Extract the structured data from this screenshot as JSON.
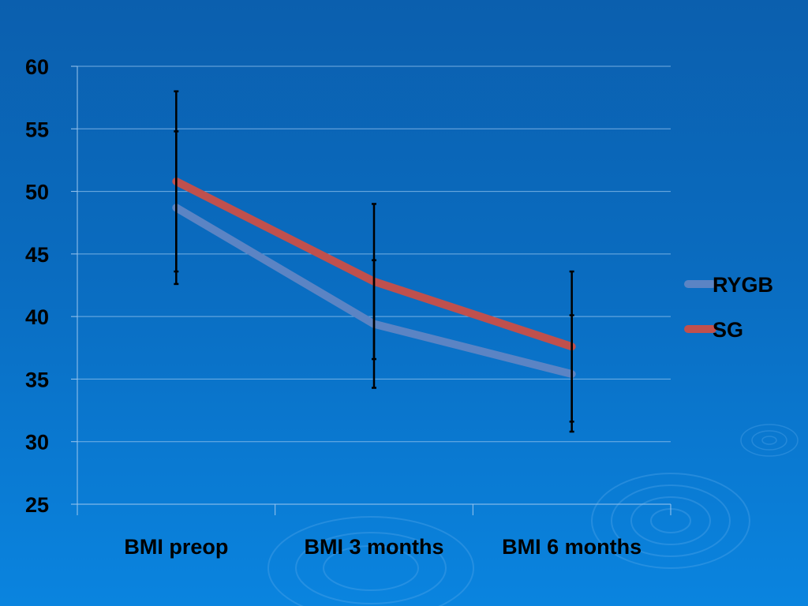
{
  "chart_data": {
    "type": "line",
    "categories": [
      "BMI preop",
      "BMI 3 months",
      "BMI 6 months"
    ],
    "ylim": [
      25,
      60
    ],
    "yticks": [
      25,
      30,
      35,
      40,
      45,
      50,
      55,
      60
    ],
    "grid": true,
    "legend_position": "right",
    "series": [
      {
        "name": "RYGB",
        "color": "#5b84c4",
        "values": [
          48.7,
          39.4,
          35.4
        ],
        "error_low": [
          43.6,
          36.6,
          31.6
        ],
        "error_high": [
          54.8,
          44.5,
          40.1
        ]
      },
      {
        "name": "SG",
        "color": "#c0504d",
        "values": [
          50.8,
          42.8,
          37.6
        ],
        "error_low": [
          42.6,
          34.3,
          30.8
        ],
        "error_high": [
          58.0,
          49.0,
          43.6
        ]
      }
    ]
  }
}
